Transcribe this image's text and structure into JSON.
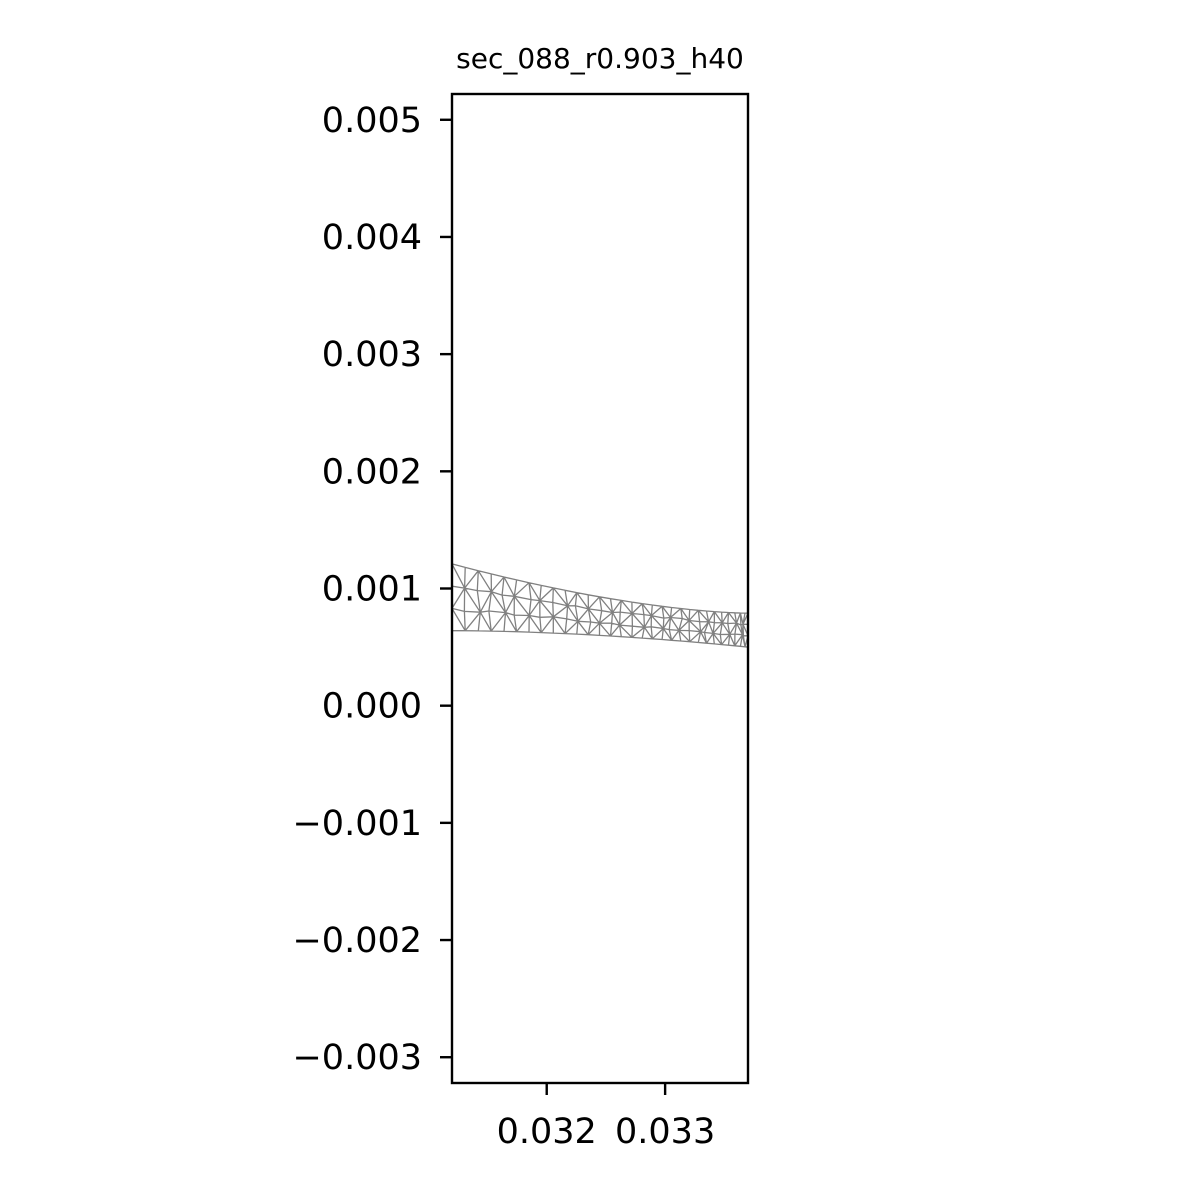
{
  "chart_data": {
    "type": "mesh",
    "title": "sec_088_r0.903_h40",
    "xlabel": "",
    "ylabel": "",
    "xlim": [
      0.0312,
      0.0337
    ],
    "ylim": [
      -0.00322,
      0.00522
    ],
    "x_ticks": [
      {
        "value": 0.032,
        "label": "0.032"
      },
      {
        "value": 0.033,
        "label": "0.033"
      }
    ],
    "y_ticks": [
      {
        "value": 0.005,
        "label": "0.005"
      },
      {
        "value": 0.004,
        "label": "0.004"
      },
      {
        "value": 0.003,
        "label": "0.003"
      },
      {
        "value": 0.002,
        "label": "0.002"
      },
      {
        "value": 0.001,
        "label": "0.001"
      },
      {
        "value": 0.0,
        "label": "0.000"
      },
      {
        "value": -0.001,
        "label": "−0.001"
      },
      {
        "value": -0.002,
        "label": "−0.002"
      },
      {
        "value": -0.003,
        "label": "−0.003"
      }
    ],
    "grid": false,
    "mesh_color": "#808080",
    "mesh": {
      "x_start": 0.0312,
      "x_end": 0.0337,
      "top_start": 0.00121,
      "top_end": 0.00079,
      "bottom_start": 0.00064,
      "bottom_end": 0.0005,
      "columns": 30,
      "rows": 3
    }
  }
}
